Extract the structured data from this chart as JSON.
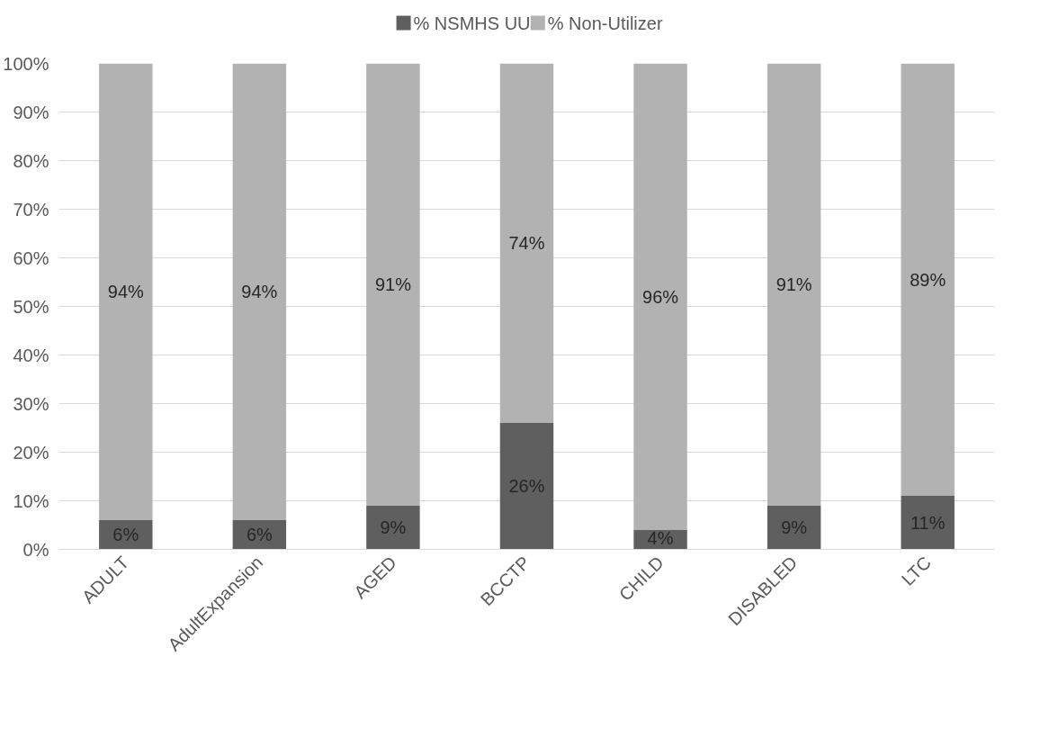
{
  "chart_data": {
    "type": "bar",
    "stacked": true,
    "categories": [
      "ADULT",
      "AdultExpansion",
      "AGED",
      "BCCTP",
      "CHILD",
      "DISABLED",
      "LTC"
    ],
    "series": [
      {
        "name": "% NSMHS UU",
        "color": "#5f5f5f",
        "values": [
          6,
          6,
          9,
          26,
          4,
          9,
          11
        ],
        "value_labels": [
          "6%",
          "6%",
          "9%",
          "26%",
          "4%",
          "9%",
          "11%"
        ]
      },
      {
        "name": "% Non-Utilizer",
        "color": "#b2b2b2",
        "values": [
          94,
          94,
          91,
          74,
          96,
          91,
          89
        ],
        "value_labels": [
          "94%",
          "94%",
          "91%",
          "74%",
          "96%",
          "91%",
          "89%"
        ]
      }
    ],
    "ylim": [
      0,
      100
    ],
    "yticks": [
      {
        "value": 0,
        "label": "0%"
      },
      {
        "value": 10,
        "label": "10%"
      },
      {
        "value": 20,
        "label": "20%"
      },
      {
        "value": 30,
        "label": "30%"
      },
      {
        "value": 40,
        "label": "40%"
      },
      {
        "value": 50,
        "label": "50%"
      },
      {
        "value": 60,
        "label": "60%"
      },
      {
        "value": 70,
        "label": "70%"
      },
      {
        "value": 80,
        "label": "80%"
      },
      {
        "value": 90,
        "label": "90%"
      },
      {
        "value": 100,
        "label": "100%"
      }
    ],
    "grid": "y",
    "legend": "top"
  }
}
